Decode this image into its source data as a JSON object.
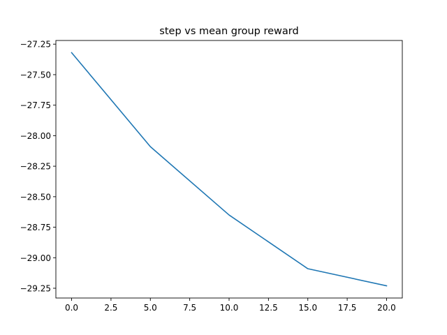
{
  "chart_data": {
    "type": "line",
    "title": "step vs mean group reward",
    "xlabel": "",
    "ylabel": "",
    "x": [
      0,
      5,
      10,
      15,
      20
    ],
    "series": [
      {
        "name": "mean group reward",
        "color": "#1f77b4",
        "values": [
          -27.32,
          -28.09,
          -28.65,
          -29.09,
          -29.23
        ]
      }
    ],
    "xlim": [
      -1.0,
      21.0
    ],
    "ylim": [
      -29.33,
      -27.22
    ],
    "xticks": [
      0.0,
      2.5,
      5.0,
      7.5,
      10.0,
      12.5,
      15.0,
      17.5,
      20.0
    ],
    "xtick_labels": [
      "0.0",
      "2.5",
      "5.0",
      "7.5",
      "10.0",
      "12.5",
      "15.0",
      "17.5",
      "20.0"
    ],
    "yticks": [
      -27.25,
      -27.5,
      -27.75,
      -28.0,
      -28.25,
      -28.5,
      -28.75,
      -29.0,
      -29.25
    ],
    "ytick_labels": [
      "−27.25",
      "−27.50",
      "−27.75",
      "−28.00",
      "−28.25",
      "−28.50",
      "−28.75",
      "−29.00",
      "−29.25"
    ],
    "grid": false,
    "legend": false
  }
}
